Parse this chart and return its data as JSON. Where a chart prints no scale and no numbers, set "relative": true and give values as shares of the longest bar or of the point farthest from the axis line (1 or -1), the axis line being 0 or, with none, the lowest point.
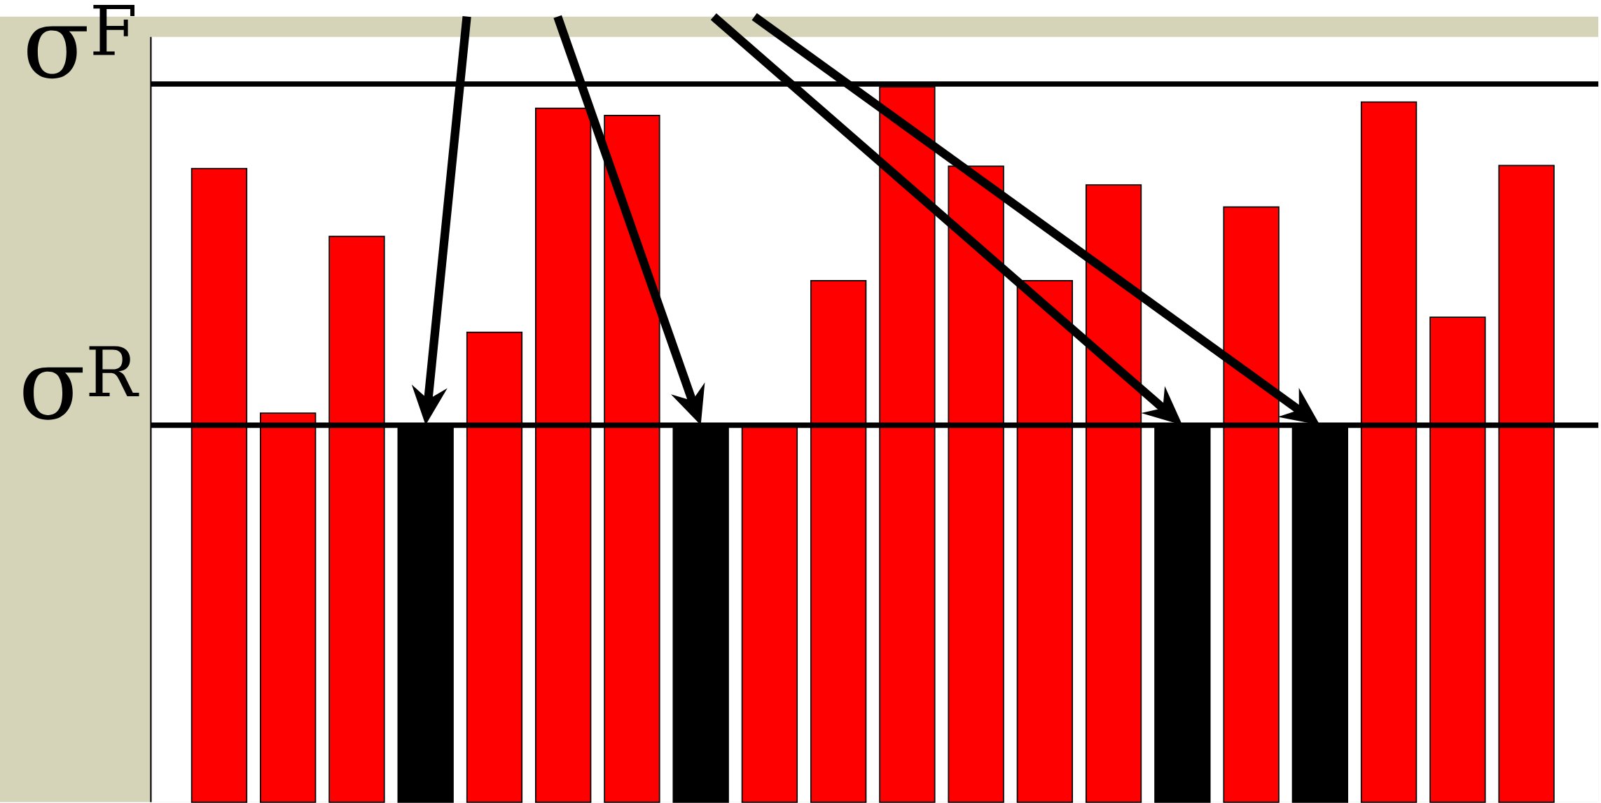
{
  "chart_data": {
    "type": "bar",
    "relative": true,
    "categories": [
      null,
      null,
      null,
      null,
      null,
      null,
      null,
      null,
      null,
      null,
      null,
      null,
      null,
      null,
      null,
      null,
      null,
      null,
      null,
      null
    ],
    "values": [
      0.886,
      0.544,
      0.791,
      0.527,
      0.657,
      0.97,
      0.96,
      0.527,
      0.527,
      0.729,
      1,
      0.889,
      0.729,
      0.863,
      0.527,
      0.832,
      0.527,
      0.979,
      0.678,
      0.89
    ],
    "colors": [
      "#ff0000",
      "#ff0000",
      "#ff0000",
      "#000000",
      "#ff0000",
      "#ff0000",
      "#ff0000",
      "#000000",
      "#ff0000",
      "#ff0000",
      "#ff0000",
      "#ff0000",
      "#ff0000",
      "#ff0000",
      "#000000",
      "#ff0000",
      "#000000",
      "#ff0000",
      "#ff0000",
      "#ff0000"
    ],
    "ref_lines": [
      {
        "axis": "y",
        "value": 1.004,
        "label": "σ$^{F}$",
        "color": "#000000"
      },
      {
        "axis": "y",
        "value": 0.527,
        "label": "σ$^{R}$",
        "color": "#000000"
      }
    ]
  }
}
